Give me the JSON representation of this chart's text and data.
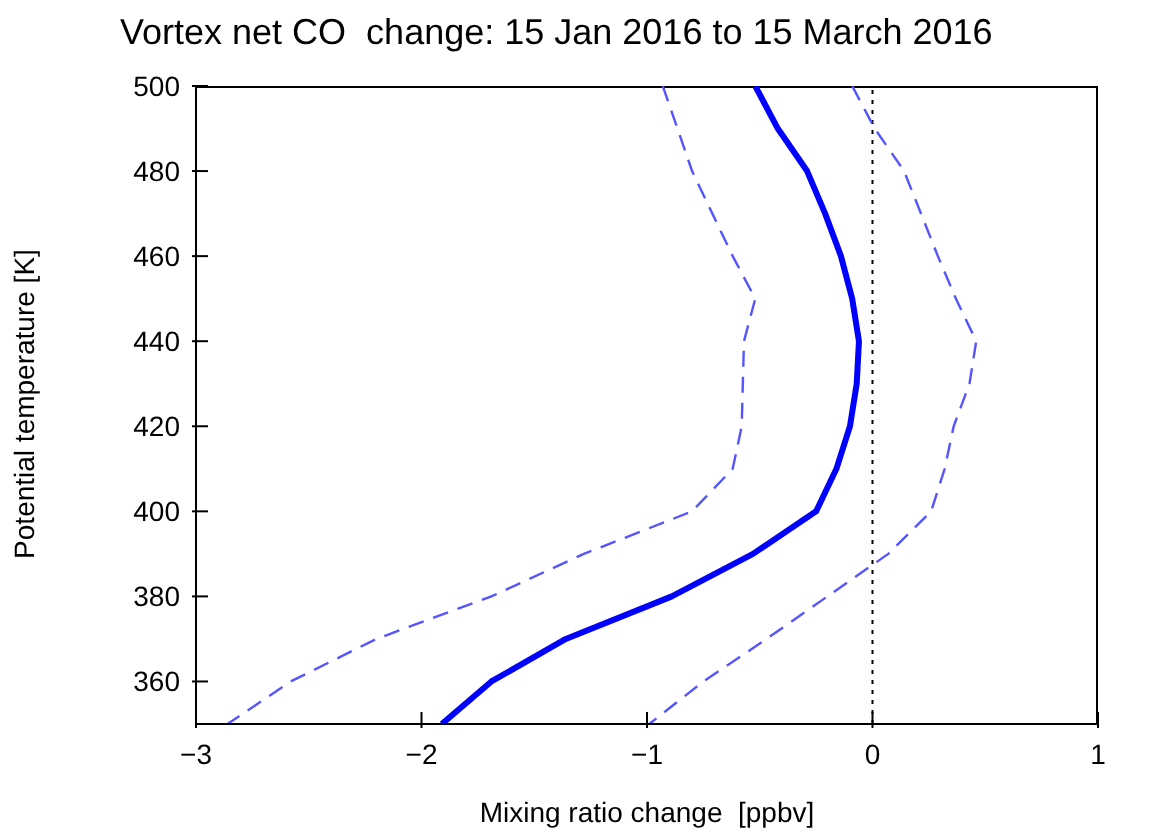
{
  "chart_data": {
    "type": "line",
    "title": "Vortex net CO  change: 15 Jan 2016 to 15 March 2016",
    "xlabel": "Mixing ratio change  [ppbv]",
    "ylabel": "Potential temperature [K]",
    "xlim": [
      -3,
      1
    ],
    "xticks": [
      -3,
      -2,
      -1,
      0,
      1
    ],
    "ylim": [
      350,
      500
    ],
    "yticks": [
      360,
      380,
      400,
      420,
      440,
      460,
      480,
      500
    ],
    "series": [
      {
        "color": "#0000ff",
        "line_style": "solid",
        "x": [
          -0.52,
          -0.42,
          -0.29,
          -0.21,
          -0.14,
          -0.09,
          -0.06,
          -0.07,
          -0.1,
          -0.16,
          -0.25,
          -0.53,
          -0.89,
          -1.36,
          -1.69,
          -1.91
        ],
        "values": [
          500,
          490,
          480,
          470,
          460,
          450,
          440,
          430,
          420,
          410,
          400,
          390,
          380,
          370,
          360,
          350
        ]
      },
      {
        "color": "#5555ff",
        "line_style": "dashed",
        "x": [
          -0.93,
          -0.8,
          -0.62,
          -0.52,
          -0.57,
          -0.58,
          -0.62,
          -0.8,
          -1.28,
          -1.69,
          -2.2,
          -2.58,
          -2.86
        ],
        "values": [
          500,
          480,
          460,
          450,
          440,
          420,
          410,
          400,
          390,
          380,
          370,
          360,
          350
        ]
      },
      {
        "color": "#5555ff",
        "line_style": "dashed",
        "x": [
          -0.09,
          0.01,
          0.14,
          0.29,
          0.37,
          0.46,
          0.43,
          0.36,
          0.32,
          0.26,
          0.07,
          -0.2,
          -0.47,
          -0.75,
          -0.99
        ],
        "values": [
          500,
          490,
          480,
          460,
          450,
          440,
          430,
          420,
          410,
          400,
          390,
          380,
          370,
          360,
          350
        ]
      }
    ],
    "ref_lines": [
      {
        "axis": "x",
        "value": 0,
        "color": "#000000",
        "line_style": "dotted"
      }
    ],
    "grid": false,
    "marker": "none"
  }
}
